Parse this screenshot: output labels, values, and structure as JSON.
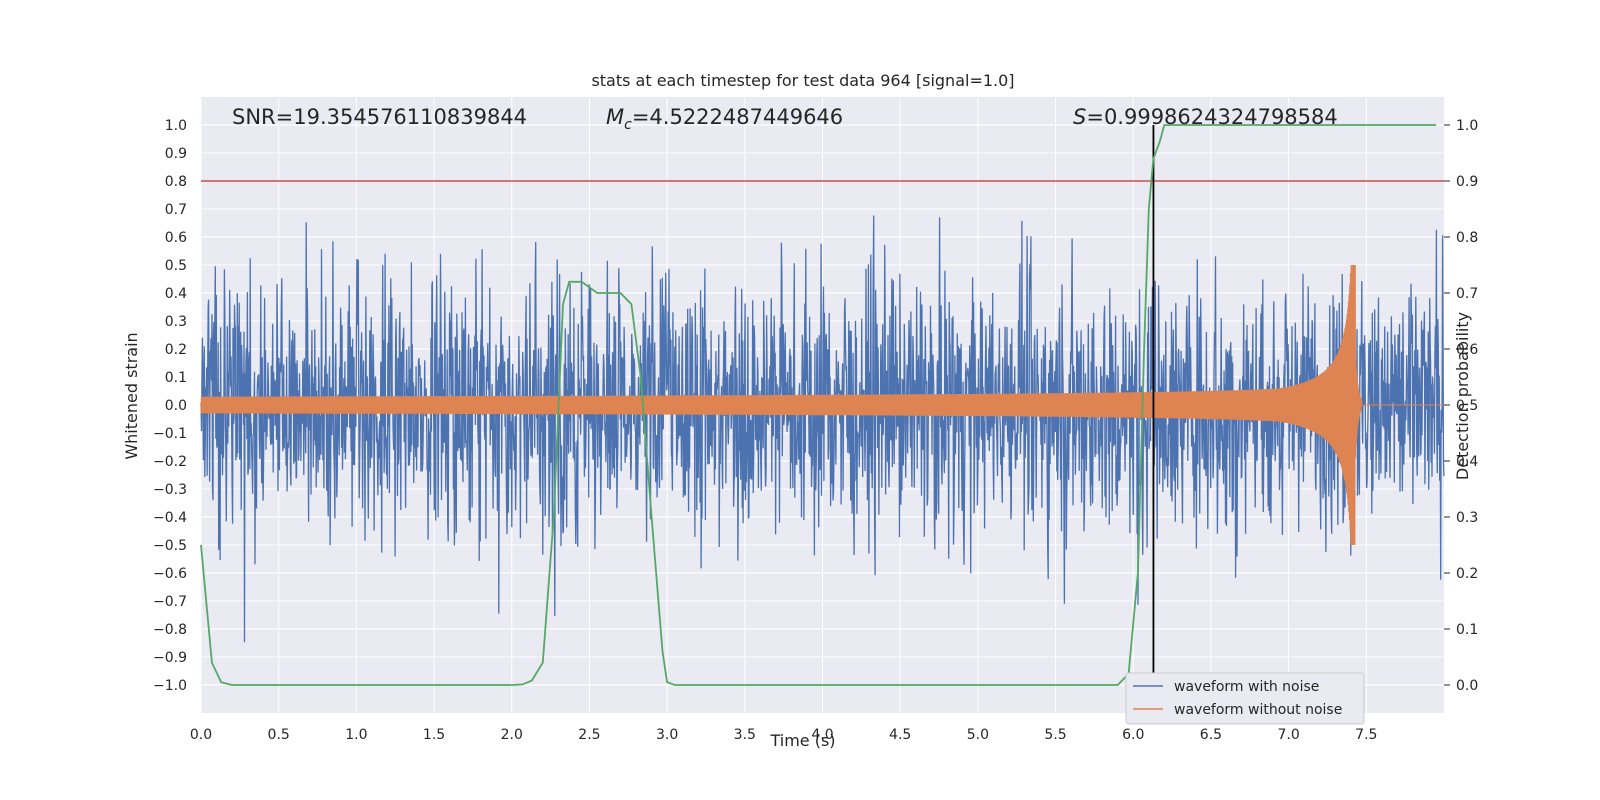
{
  "chart_data": {
    "type": "line",
    "title": "stats at each timestep for test data 964 [signal=1.0]",
    "xlabel": "Time (s)",
    "ylabel": "Whitened strain",
    "y2label": "Detection probability",
    "xlim": [
      0.0,
      8.0
    ],
    "ylim": [
      -1.1,
      1.1
    ],
    "y2lim": [
      -0.05,
      1.05
    ],
    "xticks": [
      "0.0",
      "0.5",
      "1.0",
      "1.5",
      "2.0",
      "2.5",
      "3.0",
      "3.5",
      "4.0",
      "4.5",
      "5.0",
      "5.5",
      "6.0",
      "6.5",
      "7.0",
      "7.5"
    ],
    "yticks": [
      "1.0",
      "0.9",
      "0.8",
      "0.7",
      "0.6",
      "0.5",
      "0.4",
      "0.3",
      "0.2",
      "0.1",
      "0.0",
      "-0.1",
      "-0.2",
      "-0.3",
      "-0.4",
      "-0.5",
      "-0.6",
      "-0.7",
      "-0.8",
      "-0.9",
      "-1.0"
    ],
    "y2ticks": [
      "1.0",
      "0.9",
      "0.8",
      "0.7",
      "0.6",
      "0.5",
      "0.4",
      "0.3",
      "0.2",
      "0.1",
      "0.0"
    ],
    "annotations": {
      "snr": "SNR=19.354576110839844",
      "mc_symbol": "M",
      "mc_sub": "c",
      "mc_value": "=4.5222487449646",
      "s_symbol": "S",
      "s_value": "=0.9998624324798584"
    },
    "threshold": 0.9,
    "merger_time": 6.13,
    "colors": {
      "noisy": "#4c72b0",
      "clean": "#dd8452",
      "prob": "#55a868",
      "threshold": "#c44e52",
      "merger": "#000000",
      "bg": "#eaeaf2",
      "grid": "#ffffff"
    },
    "series": [
      {
        "name": "waveform with noise",
        "envelope_amplitude": 0.85,
        "time_range": [
          0.0,
          8.0
        ]
      },
      {
        "name": "waveform without noise",
        "start_amplitude": 0.03,
        "peak_amplitude": 0.5,
        "peak_time": 7.43,
        "time_range": [
          0.0,
          8.0
        ]
      },
      {
        "name": "detection probability",
        "x": [
          0.0,
          0.07,
          0.13,
          0.2,
          0.5,
          1.0,
          1.5,
          2.0,
          2.07,
          2.13,
          2.2,
          2.27,
          2.33,
          2.37,
          2.4,
          2.45,
          2.5,
          2.55,
          2.6,
          2.65,
          2.7,
          2.77,
          2.83,
          2.9,
          2.97,
          3.0,
          3.05,
          3.2,
          3.5,
          4.0,
          4.5,
          5.0,
          5.5,
          5.9,
          5.97,
          6.03,
          6.07,
          6.1,
          6.13,
          6.17,
          6.2,
          6.3,
          6.5,
          7.0,
          7.5,
          7.95
        ],
        "values": [
          0.25,
          0.04,
          0.005,
          0.0,
          0.0,
          0.0,
          0.0,
          0.0,
          0.001,
          0.008,
          0.04,
          0.3,
          0.68,
          0.72,
          0.72,
          0.72,
          0.71,
          0.7,
          0.7,
          0.7,
          0.7,
          0.68,
          0.55,
          0.3,
          0.06,
          0.005,
          0.0,
          0.0,
          0.0,
          0.0,
          0.0,
          0.0,
          0.0,
          0.0,
          0.02,
          0.2,
          0.6,
          0.85,
          0.94,
          0.97,
          1.0,
          1.0,
          1.0,
          1.0,
          1.0,
          1.0
        ]
      }
    ],
    "legend": {
      "position": "lower-right",
      "entries": [
        "waveform with noise",
        "waveform without noise"
      ]
    }
  }
}
